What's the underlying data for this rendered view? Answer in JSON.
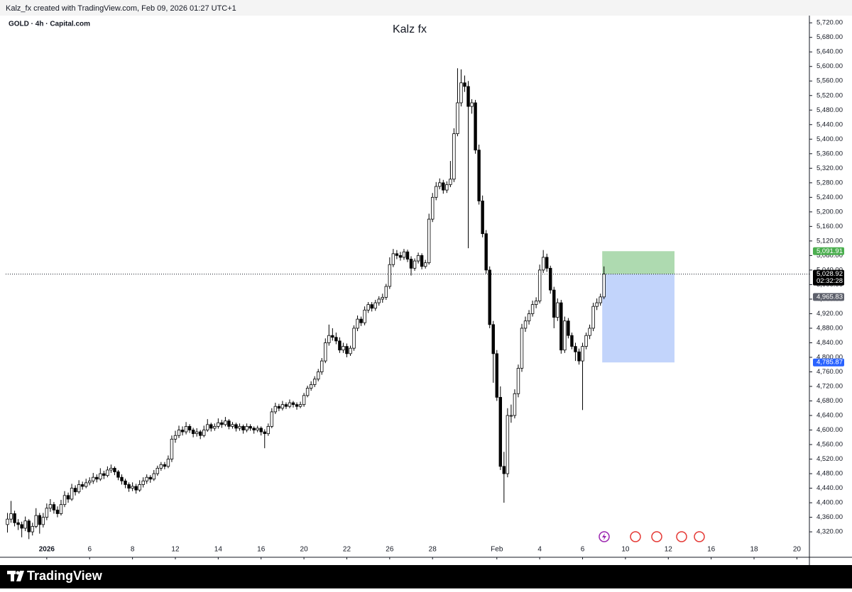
{
  "header": "Kalz_fx created with TradingView.com, Feb 09, 2026 01:27 UTC+1",
  "footer": "TradingView",
  "chart_data": {
    "type": "candlestick",
    "title": "Kalz fx",
    "symbol": "GOLD · 4h · Capital.com",
    "up_color": "#ffffff",
    "down_color": "#000000",
    "border_color": "#000000",
    "ylim": [
      4252,
      5734
    ],
    "yticks": [
      {
        "value": 4320,
        "label": "4,320.00"
      },
      {
        "value": 4360,
        "label": "4,360.00"
      },
      {
        "value": 4400,
        "label": "4,400.00"
      },
      {
        "value": 4440,
        "label": "4,440.00"
      },
      {
        "value": 4480,
        "label": "4,480.00"
      },
      {
        "value": 4520,
        "label": "4,520.00"
      },
      {
        "value": 4560,
        "label": "4,560.00"
      },
      {
        "value": 4600,
        "label": "4,600.00"
      },
      {
        "value": 4640,
        "label": "4,640.00"
      },
      {
        "value": 4680,
        "label": "4,680.00"
      },
      {
        "value": 4720,
        "label": "4,720.00"
      },
      {
        "value": 4760,
        "label": "4,760.00"
      },
      {
        "value": 4800,
        "label": "4,800.00"
      },
      {
        "value": 4840,
        "label": "4,840.00"
      },
      {
        "value": 4880,
        "label": "4,880.00"
      },
      {
        "value": 4920,
        "label": "4,920.00"
      },
      {
        "value": 4960,
        "label": "4,960.00"
      },
      {
        "value": 5000,
        "label": "5,000.00"
      },
      {
        "value": 5040,
        "label": "5,040.00"
      },
      {
        "value": 5080,
        "label": "5,080.00"
      },
      {
        "value": 5120,
        "label": "5,120.00"
      },
      {
        "value": 5160,
        "label": "5,160.00"
      },
      {
        "value": 5200,
        "label": "5,200.00"
      },
      {
        "value": 5240,
        "label": "5,240.00"
      },
      {
        "value": 5280,
        "label": "5,280.00"
      },
      {
        "value": 5320,
        "label": "5,320.00"
      },
      {
        "value": 5360,
        "label": "5,360.00"
      },
      {
        "value": 5400,
        "label": "5,400.00"
      },
      {
        "value": 5440,
        "label": "5,440.00"
      },
      {
        "value": 5480,
        "label": "5,480.00"
      },
      {
        "value": 5520,
        "label": "5,520.00"
      },
      {
        "value": 5560,
        "label": "5,560.00"
      },
      {
        "value": 5600,
        "label": "5,600.00"
      },
      {
        "value": 5640,
        "label": "5,640.00"
      },
      {
        "value": 5680,
        "label": "5,680.00"
      },
      {
        "value": 5720,
        "label": "5,720.00"
      }
    ],
    "xlim": [
      0,
      225
    ],
    "xticks": [
      {
        "value": 11,
        "label": "2026"
      },
      {
        "value": 23,
        "label": "6"
      },
      {
        "value": 35,
        "label": "8"
      },
      {
        "value": 47,
        "label": "12"
      },
      {
        "value": 59,
        "label": "14"
      },
      {
        "value": 71,
        "label": "16"
      },
      {
        "value": 83,
        "label": "20"
      },
      {
        "value": 95,
        "label": "22"
      },
      {
        "value": 107,
        "label": "26"
      },
      {
        "value": 119,
        "label": "28"
      },
      {
        "value": 137,
        "label": "Feb"
      },
      {
        "value": 149,
        "label": "4"
      },
      {
        "value": 161,
        "label": "6"
      },
      {
        "value": 173,
        "label": "10"
      },
      {
        "value": 185,
        "label": "12"
      },
      {
        "value": 197,
        "label": "16"
      },
      {
        "value": 209,
        "label": "18"
      },
      {
        "value": 221,
        "label": "20"
      }
    ],
    "ohlc": [
      [
        4340,
        4372,
        4318,
        4355
      ],
      [
        4355,
        4405,
        4345,
        4370
      ],
      [
        4370,
        4378,
        4335,
        4345
      ],
      [
        4345,
        4355,
        4325,
        4340
      ],
      [
        4340,
        4348,
        4305,
        4330
      ],
      [
        4330,
        4362,
        4322,
        4350
      ],
      [
        4350,
        4355,
        4300,
        4320
      ],
      [
        4320,
        4345,
        4310,
        4335
      ],
      [
        4335,
        4385,
        4330,
        4365
      ],
      [
        4365,
        4372,
        4315,
        4340
      ],
      [
        4340,
        4372,
        4332,
        4360
      ],
      [
        4360,
        4398,
        4352,
        4385
      ],
      [
        4385,
        4410,
        4375,
        4395
      ],
      [
        4395,
        4402,
        4370,
        4380
      ],
      [
        4380,
        4390,
        4360,
        4370
      ],
      [
        4370,
        4408,
        4365,
        4395
      ],
      [
        4395,
        4432,
        4388,
        4420
      ],
      [
        4420,
        4428,
        4400,
        4410
      ],
      [
        4410,
        4452,
        4405,
        4440
      ],
      [
        4440,
        4448,
        4420,
        4430
      ],
      [
        4430,
        4462,
        4425,
        4450
      ],
      [
        4450,
        4458,
        4436,
        4445
      ],
      [
        4445,
        4466,
        4440,
        4455
      ],
      [
        4455,
        4470,
        4448,
        4460
      ],
      [
        4460,
        4482,
        4452,
        4470
      ],
      [
        4470,
        4478,
        4456,
        4465
      ],
      [
        4465,
        4495,
        4460,
        4480
      ],
      [
        4480,
        4488,
        4465,
        4475
      ],
      [
        4475,
        4500,
        4470,
        4490
      ],
      [
        4490,
        4505,
        4482,
        4495
      ],
      [
        4495,
        4500,
        4476,
        4485
      ],
      [
        4485,
        4490,
        4462,
        4470
      ],
      [
        4470,
        4478,
        4450,
        4460
      ],
      [
        4460,
        4466,
        4440,
        4450
      ],
      [
        4450,
        4456,
        4430,
        4440
      ],
      [
        4440,
        4456,
        4432,
        4445
      ],
      [
        4445,
        4452,
        4425,
        4435
      ],
      [
        4435,
        4462,
        4430,
        4450
      ],
      [
        4450,
        4470,
        4442,
        4460
      ],
      [
        4460,
        4478,
        4452,
        4470
      ],
      [
        4470,
        4476,
        4455,
        4465
      ],
      [
        4465,
        4490,
        4460,
        4480
      ],
      [
        4480,
        4502,
        4474,
        4495
      ],
      [
        4495,
        4512,
        4488,
        4505
      ],
      [
        4505,
        4512,
        4492,
        4500
      ],
      [
        4500,
        4530,
        4495,
        4520
      ],
      [
        4520,
        4585,
        4512,
        4575
      ],
      [
        4575,
        4598,
        4565,
        4585
      ],
      [
        4585,
        4612,
        4578,
        4600
      ],
      [
        4600,
        4610,
        4585,
        4595
      ],
      [
        4595,
        4622,
        4588,
        4610
      ],
      [
        4610,
        4616,
        4592,
        4600
      ],
      [
        4600,
        4606,
        4580,
        4590
      ],
      [
        4590,
        4605,
        4582,
        4595
      ],
      [
        4595,
        4600,
        4575,
        4585
      ],
      [
        4585,
        4612,
        4580,
        4600
      ],
      [
        4600,
        4630,
        4595,
        4615
      ],
      [
        4615,
        4620,
        4596,
        4605
      ],
      [
        4605,
        4618,
        4598,
        4610
      ],
      [
        4610,
        4632,
        4604,
        4620
      ],
      [
        4620,
        4628,
        4606,
        4615
      ],
      [
        4615,
        4636,
        4610,
        4625
      ],
      [
        4625,
        4630,
        4602,
        4610
      ],
      [
        4610,
        4622,
        4604,
        4615
      ],
      [
        4615,
        4620,
        4596,
        4605
      ],
      [
        4605,
        4618,
        4598,
        4610
      ],
      [
        4610,
        4615,
        4590,
        4600
      ],
      [
        4600,
        4618,
        4594,
        4610
      ],
      [
        4610,
        4616,
        4598,
        4605
      ],
      [
        4605,
        4610,
        4590,
        4600
      ],
      [
        4600,
        4612,
        4594,
        4605
      ],
      [
        4605,
        4610,
        4585,
        4595
      ],
      [
        4595,
        4602,
        4550,
        4590
      ],
      [
        4590,
        4618,
        4584,
        4610
      ],
      [
        4610,
        4660,
        4605,
        4650
      ],
      [
        4650,
        4675,
        4644,
        4665
      ],
      [
        4665,
        4672,
        4652,
        4660
      ],
      [
        4660,
        4680,
        4654,
        4670
      ],
      [
        4670,
        4676,
        4658,
        4665
      ],
      [
        4665,
        4684,
        4660,
        4675
      ],
      [
        4675,
        4680,
        4662,
        4670
      ],
      [
        4670,
        4676,
        4656,
        4665
      ],
      [
        4665,
        4678,
        4660,
        4670
      ],
      [
        4670,
        4702,
        4664,
        4695
      ],
      [
        4695,
        4722,
        4690,
        4715
      ],
      [
        4715,
        4734,
        4708,
        4725
      ],
      [
        4725,
        4748,
        4718,
        4740
      ],
      [
        4740,
        4768,
        4734,
        4760
      ],
      [
        4760,
        4798,
        4752,
        4790
      ],
      [
        4790,
        4852,
        4784,
        4840
      ],
      [
        4840,
        4890,
        4832,
        4860
      ],
      [
        4860,
        4880,
        4846,
        4855
      ],
      [
        4855,
        4868,
        4836,
        4845
      ],
      [
        4845,
        4855,
        4812,
        4820
      ],
      [
        4820,
        4840,
        4812,
        4830
      ],
      [
        4830,
        4838,
        4800,
        4810
      ],
      [
        4810,
        4832,
        4804,
        4825
      ],
      [
        4825,
        4888,
        4818,
        4880
      ],
      [
        4880,
        4915,
        4872,
        4905
      ],
      [
        4905,
        4912,
        4886,
        4895
      ],
      [
        4895,
        4940,
        4888,
        4930
      ],
      [
        4930,
        4952,
        4922,
        4945
      ],
      [
        4945,
        4952,
        4926,
        4935
      ],
      [
        4935,
        4958,
        4928,
        4950
      ],
      [
        4950,
        4968,
        4942,
        4960
      ],
      [
        4960,
        4975,
        4950,
        4965
      ],
      [
        4965,
        5002,
        4958,
        4995
      ],
      [
        4995,
        5075,
        4988,
        5055
      ],
      [
        5055,
        5098,
        5048,
        5085
      ],
      [
        5085,
        5095,
        5070,
        5080
      ],
      [
        5080,
        5090,
        5066,
        5075
      ],
      [
        5075,
        5098,
        5068,
        5090
      ],
      [
        5090,
        5096,
        5062,
        5070
      ],
      [
        5070,
        5078,
        5025,
        5045
      ],
      [
        5045,
        5072,
        5038,
        5065
      ],
      [
        5065,
        5088,
        5058,
        5080
      ],
      [
        5080,
        5086,
        5042,
        5050
      ],
      [
        5050,
        5068,
        5044,
        5060
      ],
      [
        5060,
        5195,
        5055,
        5180
      ],
      [
        5180,
        5252,
        5172,
        5240
      ],
      [
        5240,
        5282,
        5232,
        5270
      ],
      [
        5270,
        5292,
        5262,
        5280
      ],
      [
        5280,
        5288,
        5250,
        5260
      ],
      [
        5260,
        5284,
        5252,
        5275
      ],
      [
        5275,
        5340,
        5268,
        5290
      ],
      [
        5290,
        5430,
        5282,
        5415
      ],
      [
        5415,
        5595,
        5408,
        5500
      ],
      [
        5500,
        5592,
        5490,
        5555
      ],
      [
        5555,
        5575,
        5530,
        5545
      ],
      [
        5545,
        5560,
        5100,
        5490
      ],
      [
        5490,
        5510,
        5470,
        5500
      ],
      [
        5500,
        5508,
        5360,
        5370
      ],
      [
        5370,
        5385,
        5220,
        5230
      ],
      [
        5230,
        5245,
        5130,
        5140
      ],
      [
        5140,
        5150,
        5030,
        5040
      ],
      [
        5040,
        5050,
        4880,
        4890
      ],
      [
        4890,
        4900,
        4730,
        4810
      ],
      [
        4810,
        4820,
        4680,
        4690
      ],
      [
        4690,
        4720,
        4490,
        4500
      ],
      [
        4500,
        4540,
        4400,
        4480
      ],
      [
        4480,
        4660,
        4470,
        4640
      ],
      [
        4640,
        4670,
        4620,
        4640
      ],
      [
        4640,
        4712,
        4632,
        4700
      ],
      [
        4700,
        4780,
        4690,
        4770
      ],
      [
        4770,
        4892,
        4760,
        4880
      ],
      [
        4880,
        4912,
        4870,
        4900
      ],
      [
        4900,
        4930,
        4890,
        4920
      ],
      [
        4920,
        4956,
        4912,
        4945
      ],
      [
        4945,
        4965,
        4935,
        4955
      ],
      [
        4955,
        5055,
        4948,
        5040
      ],
      [
        5040,
        5095,
        5032,
        5075
      ],
      [
        5075,
        5085,
        5035,
        5045
      ],
      [
        5045,
        5052,
        4975,
        4985
      ],
      [
        4985,
        4994,
        4880,
        4910
      ],
      [
        4910,
        4962,
        4900,
        4950
      ],
      [
        4950,
        4958,
        4810,
        4820
      ],
      [
        4820,
        4912,
        4812,
        4900
      ],
      [
        4900,
        4908,
        4852,
        4860
      ],
      [
        4860,
        4868,
        4822,
        4830
      ],
      [
        4830,
        4840,
        4790,
        4815
      ],
      [
        4815,
        4824,
        4780,
        4790
      ],
      [
        4790,
        4840,
        4655,
        4830
      ],
      [
        4830,
        4868,
        4822,
        4860
      ],
      [
        4860,
        4890,
        4850,
        4880
      ],
      [
        4880,
        4950,
        4872,
        4940
      ],
      [
        4940,
        4962,
        4930,
        4950
      ],
      [
        4950,
        4975,
        4942,
        4966
      ],
      [
        4966,
        5050,
        4960,
        5028.92
      ]
    ],
    "last_price": {
      "value": 5028.92,
      "label": "5,028.92",
      "countdown": "02:32:28",
      "color": "#000000"
    },
    "position": {
      "target": {
        "value": 5091.91,
        "label": "5,091.91",
        "color": "#4caf50",
        "fill": "#a5d6a7"
      },
      "stop": {
        "value": 4785.87,
        "label": "4,785.87",
        "color": "#2962ff",
        "fill": "#bbcffb"
      }
    },
    "price_labels": [
      {
        "value": 4965.83,
        "label": "4,965.83",
        "color": "#5d606b"
      }
    ]
  }
}
